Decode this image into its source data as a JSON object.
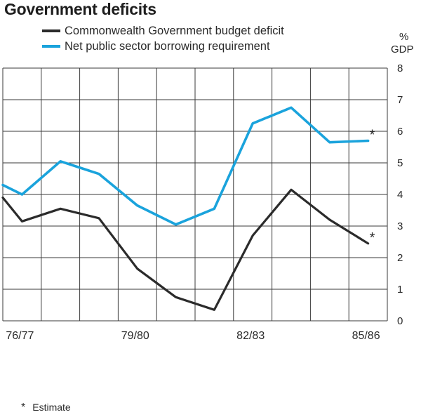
{
  "chart_data": {
    "type": "line",
    "title": "Government deficits",
    "ylabel": "% GDP",
    "ylabel_parts": [
      "%",
      "GDP"
    ],
    "ylim": [
      0,
      8
    ],
    "y_ticks": [
      0,
      1,
      2,
      3,
      4,
      5,
      6,
      7,
      8
    ],
    "y_tick_labels": [
      "0",
      "1",
      "2",
      "3",
      "4",
      "5",
      "6",
      "7",
      "8"
    ],
    "x": [
      0,
      0.5,
      1.5,
      2.5,
      3.5,
      4.5,
      5.5,
      6.5,
      7.5,
      8.5,
      9.5
    ],
    "xlim": [
      0,
      10
    ],
    "x_tick_labels": [
      {
        "pos": 0.5,
        "label": "76/77"
      },
      {
        "pos": 3.5,
        "label": "79/80"
      },
      {
        "pos": 6.5,
        "label": "82/83"
      },
      {
        "pos": 9.5,
        "label": "85/86"
      }
    ],
    "grid": true,
    "series": [
      {
        "name": "Commonwealth Government budget deficit",
        "color": "#2b2b2b",
        "values": [
          3.9,
          3.15,
          3.55,
          3.25,
          1.65,
          0.75,
          0.35,
          2.7,
          4.15,
          3.2,
          2.45
        ],
        "estimate_marker": "*"
      },
      {
        "name": "Net  public sector borrowing requirement",
        "color": "#1aa3dc",
        "values": [
          4.3,
          4.0,
          5.05,
          4.65,
          3.65,
          3.05,
          3.55,
          6.25,
          6.75,
          5.65,
          5.7
        ],
        "estimate_marker": "*"
      }
    ],
    "legend_position": "top-left",
    "footnote_symbol": "*",
    "footnote_text": "Estimate"
  }
}
